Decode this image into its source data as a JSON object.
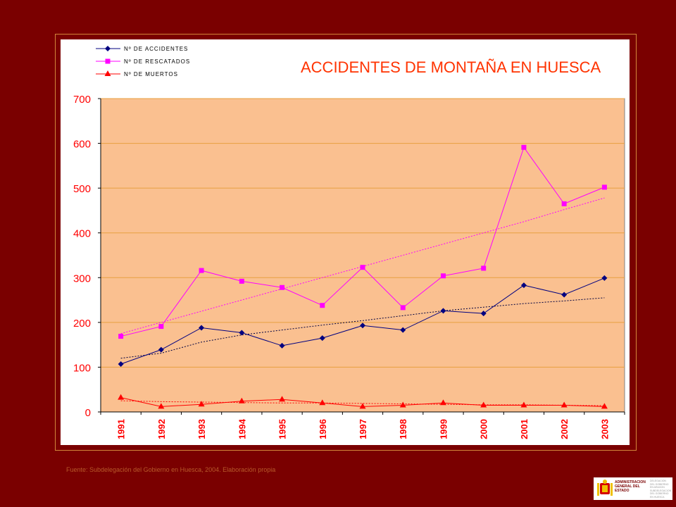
{
  "chart_data": {
    "type": "line",
    "title": "ACCIDENTES DE MONTAÑA EN HUESCA",
    "xlabel": "",
    "ylabel": "",
    "ylim": [
      0,
      700
    ],
    "yticks": [
      0,
      100,
      200,
      300,
      400,
      500,
      600,
      700
    ],
    "grid": true,
    "legend_position": "top-left",
    "categories": [
      "1991",
      "1992",
      "1993",
      "1994",
      "1995",
      "1996",
      "1997",
      "1998",
      "1999",
      "2000",
      "2001",
      "2002",
      "2003"
    ],
    "series": [
      {
        "name": "Nº DE ACCIDENTES",
        "color": "#000080",
        "marker": "diamond",
        "values": [
          107,
          139,
          188,
          177,
          148,
          165,
          193,
          183,
          226,
          220,
          283,
          262,
          299
        ],
        "trend": [
          120,
          131.2,
          156,
          172,
          183,
          194,
          204,
          215,
          226,
          234,
          242,
          248,
          255
        ]
      },
      {
        "name": "Nº DE RESCATADOS",
        "color": "#ff00ff",
        "marker": "square",
        "values": [
          169,
          191,
          316,
          292,
          278,
          238,
          323,
          233,
          304,
          321,
          591,
          465,
          502
        ],
        "trend": [
          175,
          200,
          225,
          250,
          275,
          300,
          325,
          350,
          375,
          400,
          425,
          452,
          478
        ]
      },
      {
        "name": "Nº DE MUERTOS",
        "color": "#ff0000",
        "marker": "triangle",
        "values": [
          32,
          12,
          17,
          24,
          28,
          20,
          12,
          15,
          20,
          15,
          15,
          15,
          12
        ],
        "trend": [
          25,
          23,
          22,
          21,
          20,
          20,
          19,
          18,
          17,
          16,
          16,
          15,
          14
        ]
      }
    ]
  },
  "source_note": "Fuente: Subdelegación del Gobierno en Huesca, 2004. Elaboración propia",
  "colors": {
    "background": "#7a0000",
    "plot_background": "#fac090",
    "gridline": "#e8a040",
    "axis_text": "#ff0000",
    "title_text": "#ff3300"
  },
  "logo": {
    "main_text": "ADMINISTRACION GENERAL DEL ESTADO",
    "side_text": "DELEGACION DEL GOBIERNO EN ARAGON SUBDELEGACION DEL GOBIERNO EN HUESCA"
  }
}
